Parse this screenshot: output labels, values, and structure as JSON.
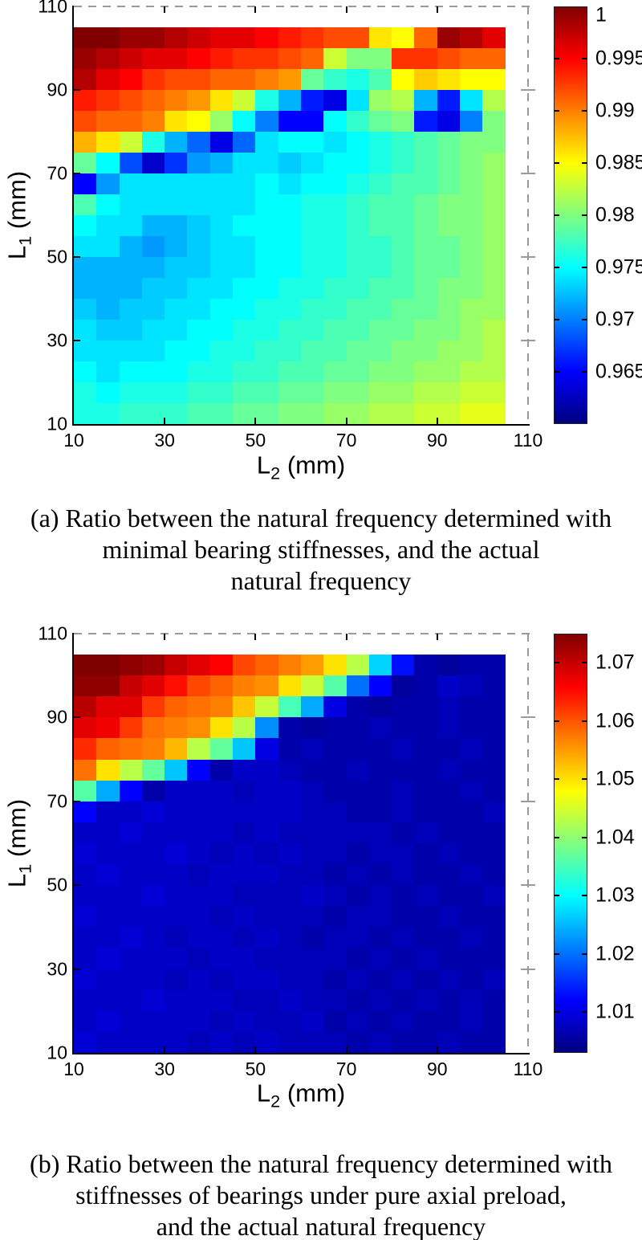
{
  "colors": {
    "background": "#ffffff",
    "axis": "#000000",
    "dashed_frame": "#9a9a9a",
    "colormap": "jet"
  },
  "chart_data": [
    {
      "type": "heatmap",
      "id": "a",
      "caption_lines": [
        "(a) Ratio between the natural frequency determined with",
        "minimal bearing stiffnesses, and the actual",
        "natural frequency"
      ],
      "xlabel": {
        "base": "L",
        "sub": "2",
        "unit": "(mm)"
      },
      "ylabel": {
        "base": "L",
        "sub": "1",
        "unit": "(mm)"
      },
      "x_ticks": [
        10,
        30,
        50,
        70,
        90,
        110
      ],
      "y_ticks": [
        10,
        30,
        50,
        70,
        90,
        110
      ],
      "axis_range": [
        10,
        110
      ],
      "l2_cells": {
        "start": 10,
        "step": 5,
        "count": 19
      },
      "l1_cells": {
        "start": 105,
        "step": -5,
        "count": 19
      },
      "row_order": "rows top-to-bottom correspond to L1 from 105 down to 10",
      "caxis": [
        0.96,
        1.0
      ],
      "colorbar_ticks": [
        1,
        0.995,
        0.99,
        0.985,
        0.98,
        0.975,
        0.97,
        0.965
      ],
      "colorbar_tick_labels": [
        "1",
        "0.995",
        "0.99",
        "0.985",
        "0.98",
        "0.975",
        "0.97",
        "0.965"
      ],
      "values": [
        [
          1.0,
          1.0,
          0.999,
          0.999,
          0.998,
          0.997,
          0.996,
          0.996,
          0.995,
          0.994,
          0.993,
          0.992,
          0.992,
          0.986,
          0.985,
          0.991,
          0.999,
          0.998,
          0.996
        ],
        [
          0.999,
          0.998,
          0.997,
          0.996,
          0.996,
          0.995,
          0.994,
          0.993,
          0.993,
          0.992,
          0.991,
          0.983,
          0.98,
          0.98,
          0.993,
          0.993,
          0.992,
          0.991,
          0.991
        ],
        [
          0.998,
          0.996,
          0.995,
          0.993,
          0.992,
          0.992,
          0.991,
          0.991,
          0.99,
          0.989,
          0.979,
          0.977,
          0.976,
          0.978,
          0.985,
          0.987,
          0.986,
          0.985,
          0.985
        ],
        [
          0.994,
          0.993,
          0.992,
          0.991,
          0.99,
          0.989,
          0.986,
          0.983,
          0.976,
          0.972,
          0.966,
          0.964,
          0.974,
          0.981,
          0.982,
          0.972,
          0.966,
          0.974,
          0.982
        ],
        [
          0.992,
          0.991,
          0.991,
          0.99,
          0.986,
          0.985,
          0.981,
          0.975,
          0.97,
          0.965,
          0.965,
          0.975,
          0.977,
          0.979,
          0.98,
          0.966,
          0.964,
          0.97,
          0.98
        ],
        [
          0.988,
          0.986,
          0.983,
          0.976,
          0.972,
          0.969,
          0.964,
          0.969,
          0.974,
          0.975,
          0.975,
          0.974,
          0.975,
          0.976,
          0.977,
          0.978,
          0.979,
          0.98,
          0.98
        ],
        [
          0.979,
          0.975,
          0.968,
          0.963,
          0.967,
          0.971,
          0.972,
          0.974,
          0.974,
          0.973,
          0.974,
          0.975,
          0.975,
          0.976,
          0.977,
          0.978,
          0.979,
          0.98,
          0.981
        ],
        [
          0.965,
          0.971,
          0.974,
          0.974,
          0.974,
          0.974,
          0.974,
          0.974,
          0.975,
          0.974,
          0.975,
          0.975,
          0.976,
          0.977,
          0.978,
          0.978,
          0.979,
          0.98,
          0.981
        ],
        [
          0.978,
          0.975,
          0.974,
          0.974,
          0.974,
          0.974,
          0.974,
          0.974,
          0.975,
          0.975,
          0.976,
          0.976,
          0.977,
          0.978,
          0.978,
          0.979,
          0.98,
          0.98,
          0.981
        ],
        [
          0.975,
          0.974,
          0.974,
          0.972,
          0.972,
          0.973,
          0.974,
          0.975,
          0.975,
          0.975,
          0.976,
          0.976,
          0.977,
          0.978,
          0.978,
          0.979,
          0.98,
          0.98,
          0.981
        ],
        [
          0.974,
          0.974,
          0.972,
          0.971,
          0.972,
          0.973,
          0.974,
          0.974,
          0.975,
          0.975,
          0.976,
          0.976,
          0.977,
          0.977,
          0.978,
          0.979,
          0.979,
          0.98,
          0.981
        ],
        [
          0.972,
          0.972,
          0.972,
          0.972,
          0.973,
          0.973,
          0.974,
          0.974,
          0.975,
          0.975,
          0.976,
          0.976,
          0.977,
          0.977,
          0.978,
          0.979,
          0.979,
          0.98,
          0.981
        ],
        [
          0.972,
          0.972,
          0.972,
          0.973,
          0.973,
          0.974,
          0.974,
          0.975,
          0.975,
          0.976,
          0.976,
          0.977,
          0.977,
          0.978,
          0.978,
          0.979,
          0.98,
          0.98,
          0.981
        ],
        [
          0.973,
          0.972,
          0.973,
          0.973,
          0.974,
          0.974,
          0.975,
          0.975,
          0.976,
          0.976,
          0.977,
          0.977,
          0.978,
          0.978,
          0.979,
          0.979,
          0.98,
          0.981,
          0.981
        ],
        [
          0.974,
          0.973,
          0.973,
          0.974,
          0.974,
          0.975,
          0.975,
          0.976,
          0.976,
          0.977,
          0.977,
          0.978,
          0.978,
          0.979,
          0.979,
          0.98,
          0.98,
          0.981,
          0.982
        ],
        [
          0.974,
          0.974,
          0.974,
          0.974,
          0.975,
          0.975,
          0.976,
          0.976,
          0.977,
          0.977,
          0.978,
          0.978,
          0.979,
          0.979,
          0.98,
          0.98,
          0.981,
          0.981,
          0.982
        ],
        [
          0.975,
          0.974,
          0.975,
          0.975,
          0.975,
          0.976,
          0.976,
          0.977,
          0.977,
          0.978,
          0.978,
          0.979,
          0.979,
          0.98,
          0.98,
          0.981,
          0.981,
          0.982,
          0.982
        ],
        [
          0.976,
          0.975,
          0.976,
          0.976,
          0.976,
          0.977,
          0.977,
          0.978,
          0.978,
          0.979,
          0.979,
          0.98,
          0.98,
          0.981,
          0.981,
          0.982,
          0.982,
          0.983,
          0.983
        ],
        [
          0.976,
          0.976,
          0.977,
          0.977,
          0.977,
          0.978,
          0.978,
          0.979,
          0.979,
          0.98,
          0.98,
          0.981,
          0.981,
          0.982,
          0.982,
          0.983,
          0.983,
          0.984,
          0.984
        ]
      ]
    },
    {
      "type": "heatmap",
      "id": "b",
      "caption_lines": [
        "(b) Ratio between the natural frequency determined with",
        "stiffnesses of bearings under pure axial preload,",
        "and the actual natural frequency"
      ],
      "xlabel": {
        "base": "L",
        "sub": "2",
        "unit": "(mm)"
      },
      "ylabel": {
        "base": "L",
        "sub": "1",
        "unit": "(mm)"
      },
      "x_ticks": [
        10,
        30,
        50,
        70,
        90,
        110
      ],
      "y_ticks": [
        10,
        30,
        50,
        70,
        90,
        110
      ],
      "axis_range": [
        10,
        110
      ],
      "l2_cells": {
        "start": 10,
        "step": 5,
        "count": 19
      },
      "l1_cells": {
        "start": 105,
        "step": -5,
        "count": 19
      },
      "row_order": "rows top-to-bottom correspond to L1 from 105 down to 10",
      "caxis": [
        1.003,
        1.075
      ],
      "colorbar_ticks": [
        1.07,
        1.06,
        1.05,
        1.04,
        1.03,
        1.02,
        1.01
      ],
      "colorbar_tick_labels": [
        "1.07",
        "1.06",
        "1.05",
        "1.04",
        "1.03",
        "1.02",
        "1.01"
      ],
      "values": [
        [
          1.075,
          1.075,
          1.074,
          1.073,
          1.07,
          1.068,
          1.066,
          1.061,
          1.059,
          1.057,
          1.055,
          1.05,
          1.043,
          1.027,
          1.013,
          1.006,
          1.005,
          1.006,
          1.006
        ],
        [
          1.074,
          1.074,
          1.07,
          1.068,
          1.065,
          1.061,
          1.059,
          1.057,
          1.056,
          1.05,
          1.044,
          1.036,
          1.02,
          1.012,
          1.005,
          1.006,
          1.008,
          1.007,
          1.006
        ],
        [
          1.071,
          1.068,
          1.068,
          1.062,
          1.059,
          1.058,
          1.057,
          1.052,
          1.044,
          1.035,
          1.024,
          1.01,
          1.006,
          1.005,
          1.006,
          1.006,
          1.007,
          1.006,
          1.006
        ],
        [
          1.068,
          1.067,
          1.062,
          1.058,
          1.057,
          1.056,
          1.05,
          1.043,
          1.022,
          1.006,
          1.005,
          1.006,
          1.006,
          1.007,
          1.006,
          1.006,
          1.007,
          1.006,
          1.006
        ],
        [
          1.063,
          1.059,
          1.058,
          1.057,
          1.053,
          1.043,
          1.037,
          1.026,
          1.01,
          1.006,
          1.007,
          1.006,
          1.006,
          1.006,
          1.007,
          1.006,
          1.006,
          1.007,
          1.006
        ],
        [
          1.058,
          1.05,
          1.043,
          1.037,
          1.026,
          1.012,
          1.006,
          1.008,
          1.008,
          1.007,
          1.006,
          1.006,
          1.007,
          1.006,
          1.006,
          1.006,
          1.007,
          1.006,
          1.006
        ],
        [
          1.036,
          1.024,
          1.012,
          1.006,
          1.008,
          1.008,
          1.008,
          1.007,
          1.008,
          1.008,
          1.007,
          1.006,
          1.006,
          1.006,
          1.007,
          1.006,
          1.006,
          1.007,
          1.006
        ],
        [
          1.012,
          1.008,
          1.008,
          1.009,
          1.008,
          1.008,
          1.008,
          1.008,
          1.008,
          1.008,
          1.007,
          1.007,
          1.006,
          1.006,
          1.007,
          1.006,
          1.006,
          1.006,
          1.007
        ],
        [
          1.008,
          1.008,
          1.009,
          1.008,
          1.008,
          1.008,
          1.008,
          1.007,
          1.008,
          1.007,
          1.007,
          1.007,
          1.007,
          1.007,
          1.006,
          1.007,
          1.006,
          1.006,
          1.006
        ],
        [
          1.009,
          1.008,
          1.008,
          1.008,
          1.009,
          1.008,
          1.007,
          1.008,
          1.007,
          1.008,
          1.007,
          1.007,
          1.006,
          1.007,
          1.007,
          1.006,
          1.007,
          1.006,
          1.006
        ],
        [
          1.008,
          1.009,
          1.008,
          1.008,
          1.008,
          1.007,
          1.008,
          1.008,
          1.008,
          1.007,
          1.007,
          1.006,
          1.007,
          1.006,
          1.007,
          1.006,
          1.006,
          1.007,
          1.006
        ],
        [
          1.008,
          1.008,
          1.008,
          1.009,
          1.008,
          1.008,
          1.008,
          1.007,
          1.007,
          1.007,
          1.008,
          1.007,
          1.006,
          1.007,
          1.006,
          1.007,
          1.006,
          1.006,
          1.007
        ],
        [
          1.009,
          1.008,
          1.008,
          1.008,
          1.008,
          1.008,
          1.007,
          1.008,
          1.007,
          1.007,
          1.007,
          1.006,
          1.007,
          1.007,
          1.006,
          1.006,
          1.007,
          1.006,
          1.006
        ],
        [
          1.008,
          1.008,
          1.009,
          1.008,
          1.007,
          1.008,
          1.008,
          1.007,
          1.008,
          1.007,
          1.006,
          1.007,
          1.007,
          1.006,
          1.007,
          1.006,
          1.006,
          1.007,
          1.006
        ],
        [
          1.008,
          1.009,
          1.008,
          1.008,
          1.008,
          1.007,
          1.008,
          1.008,
          1.007,
          1.007,
          1.007,
          1.007,
          1.006,
          1.007,
          1.006,
          1.007,
          1.006,
          1.006,
          1.006
        ],
        [
          1.009,
          1.008,
          1.008,
          1.008,
          1.007,
          1.008,
          1.007,
          1.008,
          1.008,
          1.007,
          1.007,
          1.006,
          1.007,
          1.006,
          1.007,
          1.006,
          1.007,
          1.006,
          1.007
        ],
        [
          1.008,
          1.008,
          1.008,
          1.009,
          1.008,
          1.008,
          1.008,
          1.007,
          1.007,
          1.008,
          1.007,
          1.007,
          1.006,
          1.007,
          1.006,
          1.007,
          1.006,
          1.007,
          1.006
        ],
        [
          1.008,
          1.009,
          1.008,
          1.008,
          1.008,
          1.008,
          1.007,
          1.008,
          1.007,
          1.007,
          1.008,
          1.006,
          1.007,
          1.006,
          1.007,
          1.006,
          1.006,
          1.007,
          1.006
        ],
        [
          1.009,
          1.008,
          1.008,
          1.008,
          1.008,
          1.007,
          1.008,
          1.007,
          1.008,
          1.007,
          1.007,
          1.007,
          1.006,
          1.007,
          1.006,
          1.006,
          1.007,
          1.006,
          1.006
        ]
      ]
    }
  ]
}
